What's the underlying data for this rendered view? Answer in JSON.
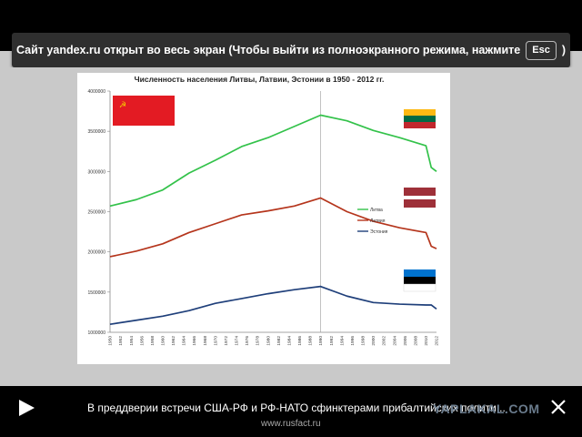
{
  "fullscreen_notice": {
    "text": "Сайт yandex.ru открыт во весь экран (Чтобы выйти из полноэкранного режима, нажмите",
    "key": "Esc",
    "suffix": ")"
  },
  "chart_data": {
    "type": "line",
    "title": "Численность населения Литвы, Латвии, Эстонии в 1950 - 2012 гг.",
    "ylim": [
      1000000,
      4000000
    ],
    "yticks": [
      "1000000",
      "1500000",
      "2000000",
      "2500000",
      "3000000",
      "3500000",
      "4000000"
    ],
    "x": [
      1950,
      1955,
      1960,
      1965,
      1970,
      1975,
      1980,
      1985,
      1990,
      1995,
      2000,
      2005,
      2010,
      2011,
      2012
    ],
    "xticks": [
      "1950",
      "1952",
      "1954",
      "1956",
      "1958",
      "1960",
      "1962",
      "1964",
      "1966",
      "1968",
      "1970",
      "1972",
      "1974",
      "1976",
      "1978",
      "1980",
      "1982",
      "1984",
      "1986",
      "1988",
      "1990",
      "1992",
      "1994",
      "1996",
      "1998",
      "2000",
      "2002",
      "2004",
      "2006",
      "2008",
      "2010",
      "2012"
    ],
    "series": [
      {
        "name": "Литва",
        "color": "#33c24a",
        "values": [
          2570000,
          2650000,
          2770000,
          2980000,
          3140000,
          3310000,
          3420000,
          3560000,
          3700000,
          3630000,
          3510000,
          3420000,
          3320000,
          3050000,
          3000000
        ]
      },
      {
        "name": "Латвия",
        "color": "#b5351c",
        "values": [
          1940000,
          2010000,
          2100000,
          2240000,
          2350000,
          2460000,
          2510000,
          2570000,
          2670000,
          2500000,
          2380000,
          2300000,
          2240000,
          2070000,
          2040000
        ]
      },
      {
        "name": "Эстония",
        "color": "#1f3f7a",
        "values": [
          1100000,
          1150000,
          1200000,
          1270000,
          1360000,
          1420000,
          1480000,
          1530000,
          1570000,
          1450000,
          1370000,
          1350000,
          1340000,
          1340000,
          1290000
        ]
      }
    ],
    "reference_line_x": 1990,
    "legend": "right",
    "grid": false
  },
  "flags": [
    {
      "name": "USSR",
      "colors": [
        "#e31b23",
        "#f4d000"
      ]
    },
    {
      "name": "Lithuania",
      "colors": [
        "#fdb913",
        "#006a44",
        "#c1272d"
      ]
    },
    {
      "name": "Latvia",
      "colors": [
        "#9e3039",
        "#ffffff",
        "#9e3039"
      ]
    },
    {
      "name": "Estonia",
      "colors": [
        "#0072ce",
        "#000000",
        "#ffffff"
      ]
    }
  ],
  "bottom": {
    "caption": "В преддверии встречи США-РФ и РФ-НАТО сфинктерами прибалтийских полити...",
    "source": "www.rusfact.ru",
    "watermark": "YAPLAKAL.COM",
    "play_icon": "play-icon",
    "close_icon": "close-icon"
  }
}
